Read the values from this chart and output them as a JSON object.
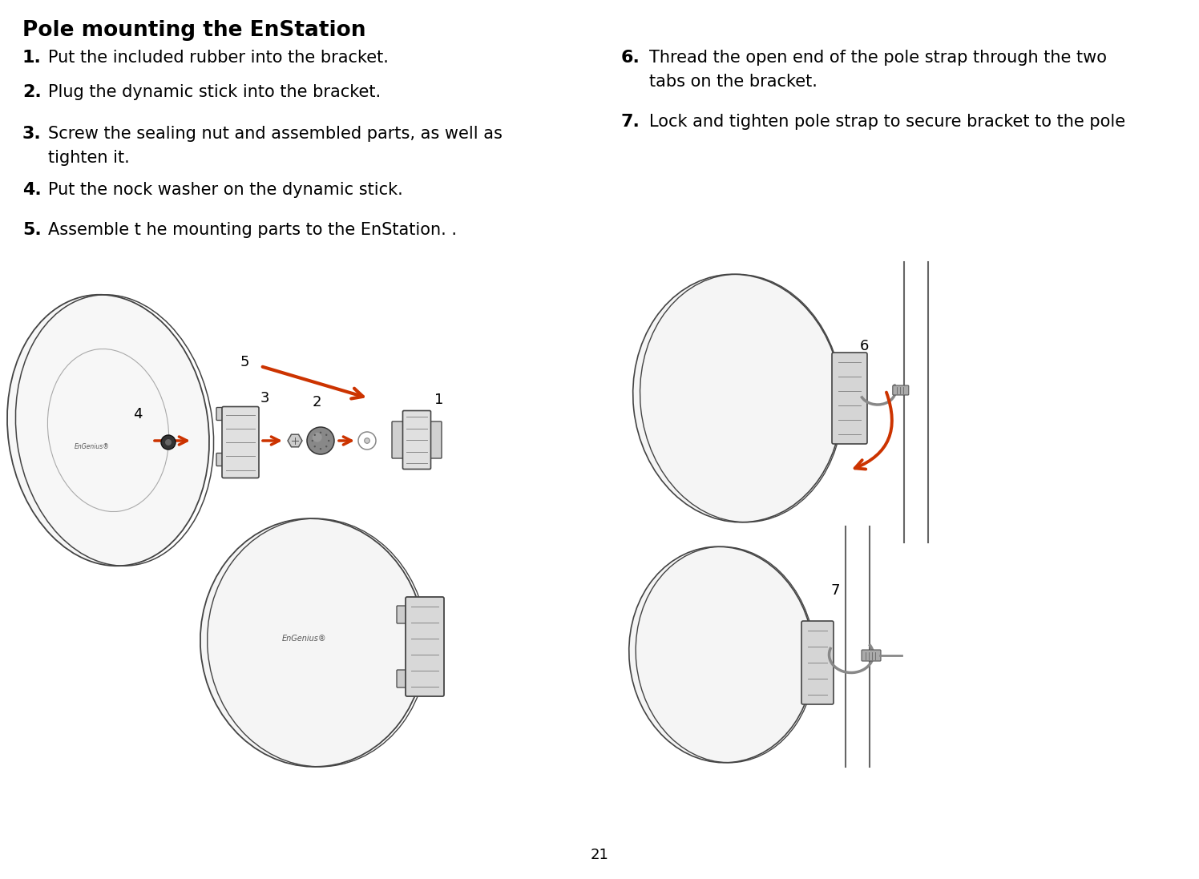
{
  "title": "Pole mounting the EnStation",
  "steps_left": [
    {
      "num": "1.",
      "text": "Put the included rubber into the bracket."
    },
    {
      "num": "2.",
      "text": "Plug the dynamic stick into the bracket."
    },
    {
      "num": "3.",
      "text_line1": "Screw the sealing nut and assembled parts, as well as",
      "text_line2": "    tighten it."
    },
    {
      "num": "4.",
      "text": "Put the nock washer on the dynamic stick."
    },
    {
      "num": "5.",
      "text": "Assemble t he mounting parts to the EnStation. ."
    }
  ],
  "steps_right": [
    {
      "num": "6.",
      "text_line1": "Thread the open end of the pole strap through the two",
      "text_line2": "    tabs on the bracket."
    },
    {
      "num": "7.",
      "text": "Lock and tighten pole strap to secure bracket to the pole"
    }
  ],
  "page_number": "21",
  "bg_color": "#ffffff",
  "text_color": "#000000",
  "arrow_color": "#cc3300",
  "line_color": "#444444",
  "light_gray": "#e8e8e8",
  "mid_gray": "#aaaaaa",
  "dark_gray": "#666666",
  "title_fontsize": 19,
  "step_num_fontsize": 16,
  "step_text_fontsize": 15,
  "page_num_fontsize": 13,
  "label_num_fontsize": 13
}
